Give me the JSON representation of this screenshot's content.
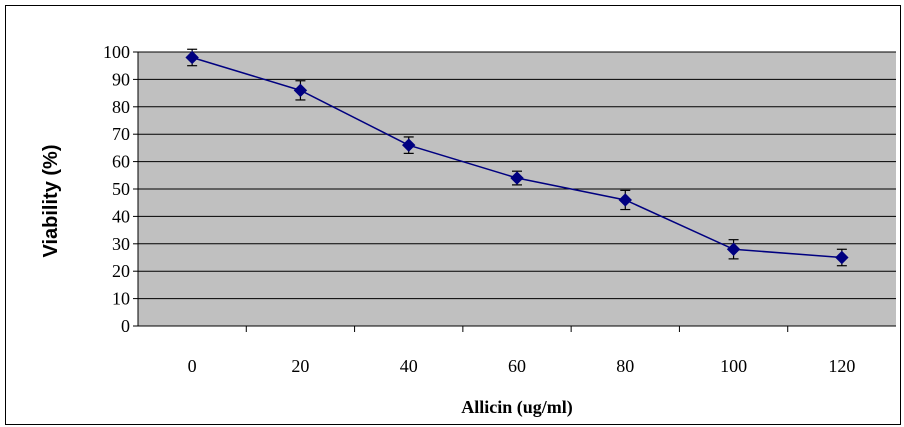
{
  "chart_data": {
    "type": "line",
    "title": "",
    "xlabel": "Allicin (ug/ml)",
    "ylabel": "Viability (%)",
    "categories": [
      "0",
      "20",
      "40",
      "60",
      "80",
      "100",
      "120"
    ],
    "ylim": [
      0,
      100
    ],
    "yticks": [
      "0",
      "10",
      "20",
      "30",
      "40",
      "50",
      "60",
      "70",
      "80",
      "90",
      "100"
    ],
    "grid": true,
    "legend": "none",
    "series": [
      {
        "values": [
          98,
          86,
          66,
          54,
          46,
          28,
          25
        ],
        "error": [
          3,
          3.5,
          3,
          2.5,
          3.5,
          3.5,
          3
        ],
        "color": "#000080",
        "marker": "diamond"
      }
    ],
    "plot_background": "#c0c0c0",
    "gridline_color": "#000000"
  }
}
